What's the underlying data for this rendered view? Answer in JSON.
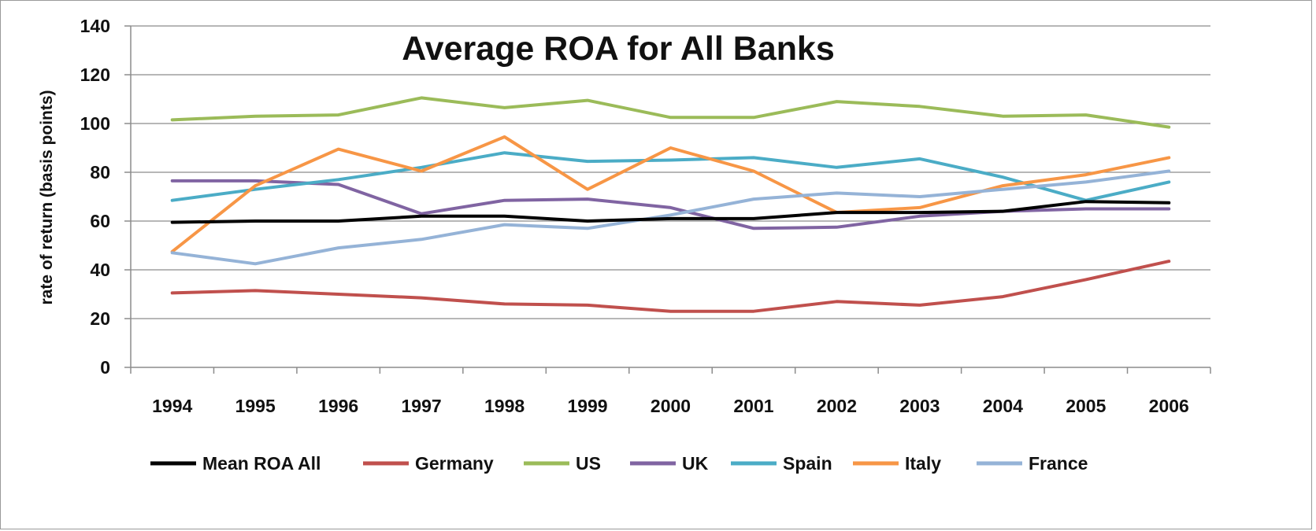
{
  "chart_data": {
    "type": "line",
    "title": "Average ROA for All Banks",
    "xlabel": "",
    "ylabel": "rate of return (basis points)",
    "ylim": [
      0,
      140
    ],
    "yticks": [
      0,
      20,
      40,
      60,
      80,
      100,
      120,
      140
    ],
    "grid": "horizontal",
    "legend": "bottom",
    "categories": [
      "1994",
      "1995",
      "1996",
      "1997",
      "1998",
      "1999",
      "2000",
      "2001",
      "2002",
      "2003",
      "2004",
      "2005",
      "2006"
    ],
    "series": [
      {
        "name": "Mean ROA All",
        "color": "#000000",
        "values": [
          59.5,
          60,
          60,
          62,
          62,
          60,
          61,
          61,
          63.5,
          63.5,
          64,
          68,
          67.5
        ]
      },
      {
        "name": "Germany",
        "color": "#c0504d",
        "values": [
          30.5,
          31.5,
          30,
          28.5,
          26,
          25.5,
          23,
          23,
          27,
          25.5,
          29,
          36,
          43.5
        ]
      },
      {
        "name": "US",
        "color": "#9bbb59",
        "values": [
          101.5,
          103,
          103.5,
          110.5,
          106.5,
          109.5,
          102.5,
          102.5,
          109,
          107,
          103,
          103.5,
          98.5
        ]
      },
      {
        "name": "UK",
        "color": "#8064a2",
        "values": [
          76.5,
          76.5,
          75,
          63,
          68.5,
          69,
          65.5,
          57,
          57.5,
          62,
          64,
          65,
          65
        ]
      },
      {
        "name": "Spain",
        "color": "#4bacc6",
        "values": [
          68.5,
          73,
          77,
          82,
          88,
          84.5,
          85,
          86,
          82,
          85.5,
          78,
          68.5,
          76
        ]
      },
      {
        "name": "Italy",
        "color": "#f79646",
        "values": [
          47.5,
          74.5,
          89.5,
          80.5,
          94.5,
          73,
          90,
          80.5,
          63.5,
          65.5,
          74.5,
          79,
          86
        ]
      },
      {
        "name": "France",
        "color": "#95b3d7",
        "values": [
          47,
          42.5,
          49,
          52.5,
          58.5,
          57,
          62.5,
          69,
          71.5,
          70,
          73,
          76,
          80.5
        ]
      }
    ]
  }
}
